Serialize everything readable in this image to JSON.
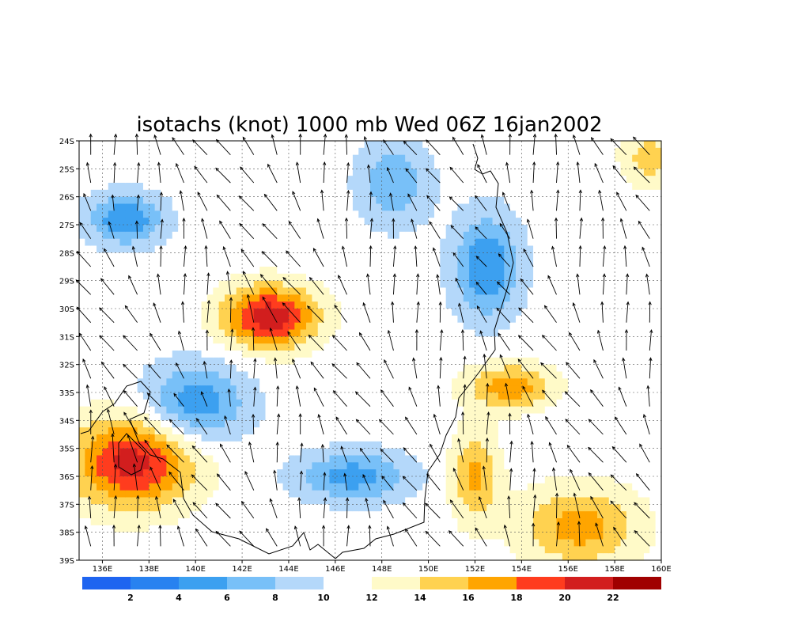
{
  "chart_data": {
    "type": "heatmap",
    "title": "isotachs (knot) 1000 mb Wed 06Z 16jan2002",
    "x_ticks": [
      "136E",
      "138E",
      "140E",
      "142E",
      "144E",
      "146E",
      "148E",
      "150E",
      "152E",
      "154E",
      "156E",
      "158E",
      "160E"
    ],
    "x_tick_values": [
      136,
      138,
      140,
      142,
      144,
      146,
      148,
      150,
      152,
      154,
      156,
      158,
      160
    ],
    "y_ticks": [
      "24S",
      "25S",
      "26S",
      "27S",
      "28S",
      "29S",
      "30S",
      "31S",
      "32S",
      "33S",
      "34S",
      "35S",
      "36S",
      "37S",
      "38S",
      "39S"
    ],
    "y_tick_values": [
      -24,
      -25,
      -26,
      -27,
      -28,
      -29,
      -30,
      -31,
      -32,
      -33,
      -34,
      -35,
      -36,
      -37,
      -38,
      -39
    ],
    "xlim": [
      135,
      160
    ],
    "ylim": [
      -39,
      -24
    ],
    "grid": true,
    "colorbar": {
      "labels": [
        "2",
        "4",
        "6",
        "8",
        "10",
        "12",
        "14",
        "16",
        "18",
        "20",
        "22"
      ],
      "colors": [
        "#1e64f0",
        "#2882f0",
        "#3ca0f0",
        "#78c0f8",
        "#b4d8fa",
        "#ffffff",
        "#fffac8",
        "#ffd250",
        "#ffa500",
        "#ff3c1e",
        "#d21e1e",
        "#a00000"
      ]
    },
    "speed_blobs": [
      {
        "lon": 137.0,
        "lat": -26.8,
        "rx": 1.6,
        "ry": 0.9,
        "peak": 4.0,
        "sense": "low"
      },
      {
        "lon": 140.0,
        "lat": -33.4,
        "rx": 2.2,
        "ry": 1.4,
        "peak": 4.5,
        "sense": "low"
      },
      {
        "lon": 146.8,
        "lat": -36.0,
        "rx": 2.4,
        "ry": 0.9,
        "peak": 5.0,
        "sense": "low"
      },
      {
        "lon": 152.5,
        "lat": -28.5,
        "rx": 1.4,
        "ry": 1.8,
        "peak": 4.0,
        "sense": "low"
      },
      {
        "lon": 148.5,
        "lat": -25.5,
        "rx": 1.5,
        "ry": 1.5,
        "peak": 6.0,
        "sense": "low"
      },
      {
        "lon": 143.2,
        "lat": -30.3,
        "rx": 2.0,
        "ry": 1.1,
        "peak": 21.5,
        "sense": "high"
      },
      {
        "lon": 137.3,
        "lat": -35.5,
        "rx": 2.6,
        "ry": 1.6,
        "peak": 21.0,
        "sense": "high"
      },
      {
        "lon": 153.5,
        "lat": -32.8,
        "rx": 1.8,
        "ry": 0.8,
        "peak": 17.5,
        "sense": "high"
      },
      {
        "lon": 152.0,
        "lat": -36.0,
        "rx": 1.0,
        "ry": 1.6,
        "peak": 16.5,
        "sense": "high"
      },
      {
        "lon": 156.5,
        "lat": -37.8,
        "rx": 2.5,
        "ry": 1.4,
        "peak": 17.0,
        "sense": "high"
      },
      {
        "lon": 159.5,
        "lat": -24.6,
        "rx": 1.2,
        "ry": 1.0,
        "peak": 15.0,
        "sense": "high"
      }
    ],
    "wind_vectors": {
      "lon_step": 1.0,
      "lat_step": 1.0,
      "direction_deg": 340
    }
  }
}
